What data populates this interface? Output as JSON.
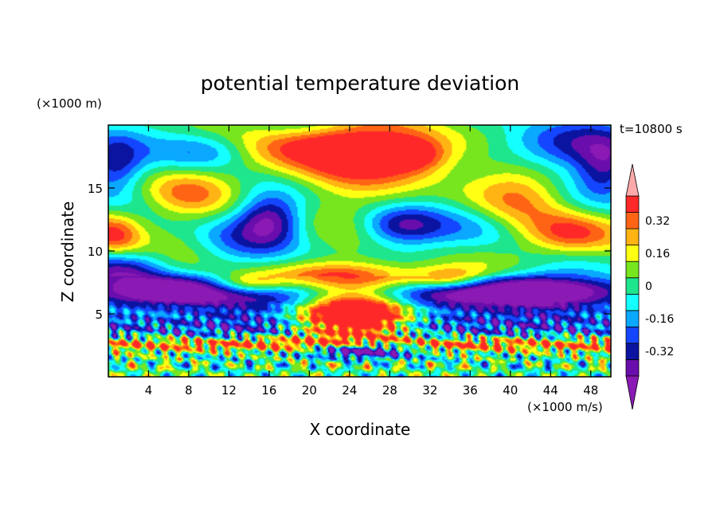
{
  "chart_data": {
    "type": "heatmap",
    "title": "potential temperature deviation",
    "time_label": "t=10800 s",
    "xlabel": "X coordinate",
    "ylabel": "Z coordinate",
    "x_unit": "(×1000 m/s)",
    "y_unit": "(×1000 m)",
    "xlim": [
      0,
      50
    ],
    "ylim": [
      0,
      20
    ],
    "x_ticks": [
      4,
      8,
      12,
      16,
      20,
      24,
      28,
      32,
      36,
      40,
      44,
      48
    ],
    "y_ticks": [
      5,
      10,
      15
    ],
    "colorbar": {
      "levels": [
        -0.44,
        -0.36,
        -0.28,
        -0.2,
        -0.12,
        -0.04,
        0.04,
        0.12,
        0.2,
        0.28,
        0.36
      ],
      "colors": [
        "#8a1ab3",
        "#6a0dad",
        "#0a14a0",
        "#1446ff",
        "#0aa8ff",
        "#14ffff",
        "#1ee68c",
        "#78e61e",
        "#ffff14",
        "#ffb414",
        "#ff6414",
        "#ff2828",
        "#ffaaaa"
      ],
      "tick_labels": [
        "0.32",
        "0.16",
        "0",
        "-0.16",
        "-0.32"
      ],
      "tick_values": [
        0.32,
        0.16,
        0,
        -0.16,
        -0.32
      ]
    },
    "features": [
      {
        "x": 25,
        "z": 17.9,
        "sx": 9.5,
        "sz": 1.6,
        "amp": 0.5
      },
      {
        "x": 30.5,
        "z": 17.6,
        "sx": 2.2,
        "sz": 0.9,
        "amp": 0.25
      },
      {
        "x": 22,
        "z": 18.5,
        "sx": 4,
        "sz": 0.8,
        "amp": 0.12
      },
      {
        "x": 7.5,
        "z": 14.5,
        "sx": 3.2,
        "sz": 1.4,
        "amp": 0.22
      },
      {
        "x": 41,
        "z": 14.5,
        "sx": 3.5,
        "sz": 1.8,
        "amp": 0.24
      },
      {
        "x": 46,
        "z": 11.3,
        "sx": 3.2,
        "sz": 1.2,
        "amp": 0.42
      },
      {
        "x": 0.5,
        "z": 11.3,
        "sx": 2,
        "sz": 1.3,
        "amp": 0.42
      },
      {
        "x": 27.5,
        "z": 13.2,
        "sx": 4,
        "sz": 1.8,
        "amp": 0.1
      },
      {
        "x": 10,
        "z": 18,
        "sx": 3.5,
        "sz": 1.2,
        "amp": -0.36
      },
      {
        "x": 43.5,
        "z": 18.2,
        "sx": 5.5,
        "sz": 1.4,
        "amp": -0.4
      },
      {
        "x": 49.5,
        "z": 16.5,
        "sx": 2,
        "sz": 1.5,
        "amp": -0.3
      },
      {
        "x": 0.5,
        "z": 17,
        "sx": 2,
        "sz": 1.5,
        "amp": -0.34
      },
      {
        "x": 16,
        "z": 12.5,
        "sx": 2.2,
        "sz": 1.4,
        "amp": -0.4
      },
      {
        "x": 29,
        "z": 12,
        "sx": 3,
        "sz": 1.1,
        "amp": -0.38
      },
      {
        "x": 37,
        "z": 12,
        "sx": 3,
        "sz": 1.4,
        "amp": -0.16
      },
      {
        "x": 12,
        "z": 10.8,
        "sx": 3,
        "sz": 1.4,
        "amp": -0.16
      },
      {
        "x": 22,
        "z": 15.2,
        "sx": 3.5,
        "sz": 1.2,
        "amp": 0.06
      },
      {
        "x": 6,
        "z": 7,
        "sx": 4,
        "sz": 0.8,
        "amp": -0.42
      },
      {
        "x": 42,
        "z": 7,
        "sx": 6,
        "sz": 0.9,
        "amp": -0.42
      },
      {
        "x": 25,
        "z": 6.4,
        "sx": 22,
        "sz": 0.9,
        "amp": -0.42
      },
      {
        "x": 1,
        "z": 8.5,
        "sx": 3,
        "sz": 1,
        "amp": -0.3
      },
      {
        "x": 25,
        "z": 8,
        "sx": 7,
        "sz": 0.8,
        "amp": 0.34
      },
      {
        "x": 14,
        "z": 7.4,
        "sx": 2.5,
        "sz": 0.6,
        "amp": 0.3
      },
      {
        "x": 34,
        "z": 7.8,
        "sx": 2.5,
        "sz": 0.6,
        "amp": 0.28
      },
      {
        "x": 24.5,
        "z": 4.8,
        "sx": 4,
        "sz": 1.5,
        "amp": 1.1
      },
      {
        "x": 25,
        "z": 4,
        "sx": 25,
        "sz": 0.9,
        "amp": -0.35
      },
      {
        "x": 25,
        "z": 2.6,
        "sx": 30,
        "sz": 0.4,
        "amp": 0.45
      },
      {
        "x": 25,
        "z": 2.2,
        "sx": 4,
        "sz": 0.5,
        "amp": -0.8
      }
    ]
  }
}
